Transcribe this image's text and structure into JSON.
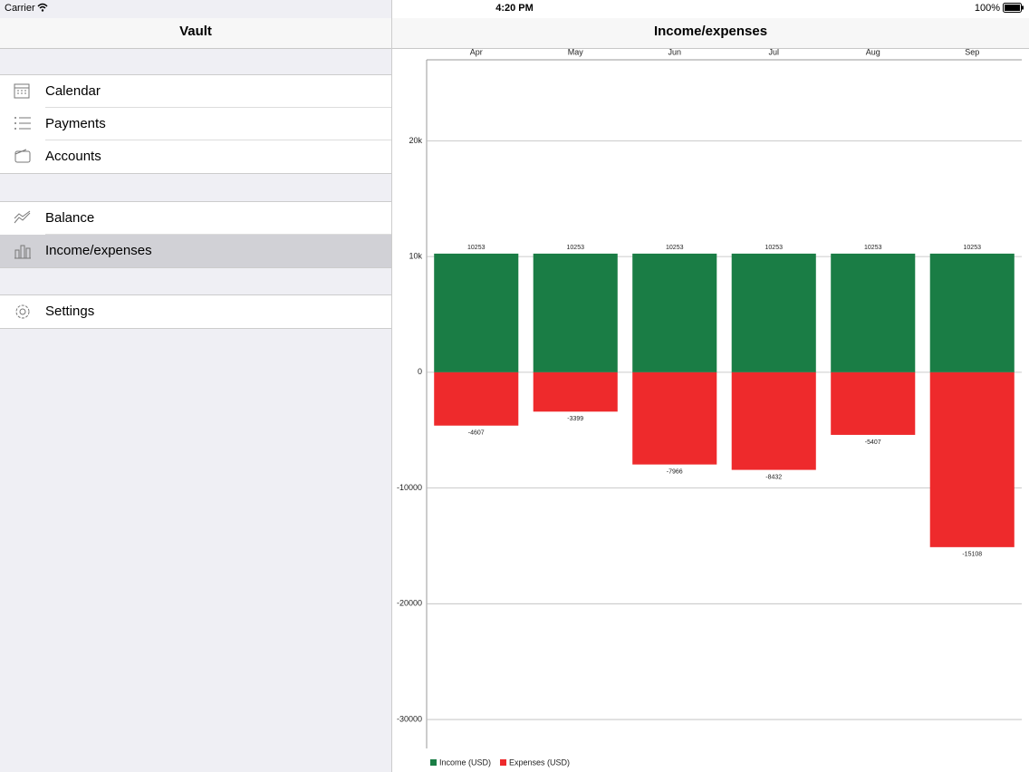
{
  "status_bar": {
    "carrier": "Carrier",
    "time": "4:20 PM",
    "battery": "100%"
  },
  "sidebar": {
    "title": "Vault",
    "groups": [
      [
        "Calendar",
        "Payments",
        "Accounts"
      ],
      [
        "Balance",
        "Income/expenses"
      ],
      [
        "Settings"
      ]
    ]
  },
  "chart_data": {
    "type": "bar",
    "title": "Income/expenses",
    "categories": [
      "Apr",
      "May",
      "Jun",
      "Jul",
      "Aug",
      "Sep"
    ],
    "series": [
      {
        "name": "Income (USD)",
        "color": "#1a7d45",
        "values": [
          10253,
          10253,
          10253,
          10253,
          10253,
          10253
        ]
      },
      {
        "name": "Expenses (USD)",
        "color": "#ee2a2c",
        "values": [
          -4607,
          -3399,
          -7966,
          -8432,
          -5407,
          -15108
        ]
      }
    ],
    "ylim": [
      -32500,
      27000
    ],
    "yticks": [
      -30000,
      -20000,
      -10000,
      0,
      {
        "value": 10000,
        "label": "10k"
      },
      {
        "value": 20000,
        "label": "20k"
      }
    ],
    "grid": true,
    "legend": "bottom-left"
  }
}
